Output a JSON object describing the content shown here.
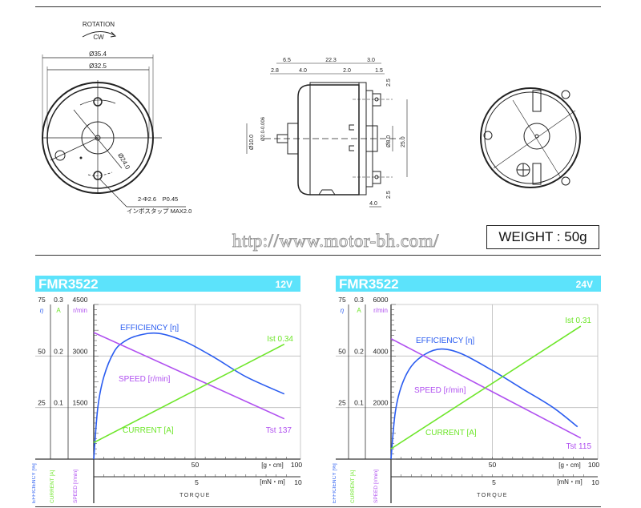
{
  "drawings": {
    "front": {
      "rotation_label": "ROTATION",
      "direction": "CW",
      "outer_diameter": "Ø35.4",
      "inner_diameter": "Ø32.5",
      "pitch_diameter": "Ø24.0",
      "hole_spec": "2-Φ2.6　P0.45",
      "tap_note": "インボスタップ MAX2.0"
    },
    "side": {
      "d_6_5": "6.5",
      "d_22_3": "22.3",
      "d_3_0": "3.0",
      "d_2_8": "2.8",
      "d_4_0_top": "4.0",
      "d_2_0": "2.0",
      "d_1_5": "1.5",
      "boss_dia": "Ø10.0",
      "shaft_dia": "Ø2.0-0.006",
      "center_dia": "Ø8.0",
      "terminal_pitch": "25.0",
      "d_2_5_top": "2.5",
      "d_2_5_bottom": "2.5",
      "d_4_0_bottom": "4.0"
    }
  },
  "url": "http://www.motor-bh.com/",
  "weight": "WEIGHT : 50g",
  "colors": {
    "header": "#5ce3fb",
    "efficiency": "#2a5cf0",
    "current": "#6ee62a",
    "speed": "#b050f0"
  },
  "chart_data": [
    {
      "type": "line",
      "title": "FMR3522",
      "voltage": "12V",
      "x_label": "TORQUE",
      "x_unit_primary": "[g・cm]",
      "x_unit_secondary": "[mN・m]",
      "x_ticks_primary": [
        "50",
        "100"
      ],
      "x_ticks_secondary": [
        "5",
        "10"
      ],
      "xlim": [
        0,
        100
      ],
      "axes": {
        "efficiency": {
          "symbol": "η",
          "label": "EFFICIENCY [%]",
          "ticks": [
            "25",
            "50",
            "75"
          ],
          "ylim": [
            0,
            75
          ]
        },
        "current": {
          "symbol": "A",
          "label": "CURRENT [A]",
          "ticks": [
            "0.1",
            "0.2",
            "0.3"
          ],
          "ylim": [
            0,
            0.3
          ]
        },
        "speed": {
          "symbol": "r/min",
          "label": "SPEED [r/min]",
          "ticks": [
            "1500",
            "3000",
            "4500"
          ],
          "ylim": [
            0,
            4500
          ]
        }
      },
      "grid": true,
      "series": [
        {
          "name": "EFFICIENCY [η]",
          "axis": "efficiency",
          "x": [
            0,
            2,
            5,
            10,
            15,
            22,
            32,
            45,
            60,
            75,
            94
          ],
          "y": [
            0,
            25,
            40,
            52,
            57,
            60,
            61,
            57,
            49,
            40,
            31.6
          ]
        },
        {
          "name": "SPEED [r/min]",
          "axis": "speed",
          "x": [
            0,
            94
          ],
          "y": [
            3684,
            1173
          ]
        },
        {
          "name": "CURRENT [A]",
          "axis": "current",
          "x": [
            0,
            94
          ],
          "y": [
            0.032,
            0.223
          ]
        }
      ],
      "annotations": {
        "stall_current": "Ist 0.34",
        "stall_torque": "Tst 137"
      }
    },
    {
      "type": "line",
      "title": "FMR3522",
      "voltage": "24V",
      "x_label": "TORQUE",
      "x_unit_primary": "[g・cm]",
      "x_unit_secondary": "[mN・m]",
      "x_ticks_primary": [
        "50",
        "100"
      ],
      "x_ticks_secondary": [
        "5",
        "10"
      ],
      "xlim": [
        0,
        100
      ],
      "axes": {
        "efficiency": {
          "symbol": "η",
          "label": "EFFICIENCY [%]",
          "ticks": [
            "25",
            "50",
            "75"
          ],
          "ylim": [
            0,
            75
          ]
        },
        "current": {
          "symbol": "A",
          "label": "CURRENT [A]",
          "ticks": [
            "0.1",
            "0.2",
            "0.3"
          ],
          "ylim": [
            0,
            0.3
          ]
        },
        "speed": {
          "symbol": "r/min",
          "label": "SPEED [r/min]",
          "ticks": [
            "2000",
            "4000",
            "6000"
          ],
          "ylim": [
            0,
            6000
          ]
        }
      },
      "grid": true,
      "series": [
        {
          "name": "EFFICIENCY [η]",
          "axis": "efficiency",
          "x": [
            0,
            2,
            5,
            10,
            17,
            25,
            35,
            50,
            65,
            80,
            92
          ],
          "y": [
            0,
            22,
            35,
            45,
            51,
            53.4,
            51,
            43,
            34,
            25,
            15.7
          ]
        },
        {
          "name": "SPEED [r/min]",
          "axis": "speed",
          "x": [
            0,
            93.6
          ],
          "y": [
            4673,
            818
          ]
        },
        {
          "name": "CURRENT [A]",
          "axis": "current",
          "x": [
            0,
            93.6
          ],
          "y": [
            0.02,
            0.258
          ]
        }
      ],
      "annotations": {
        "stall_current": "Ist 0.31",
        "stall_torque": "Tst 115"
      }
    }
  ]
}
